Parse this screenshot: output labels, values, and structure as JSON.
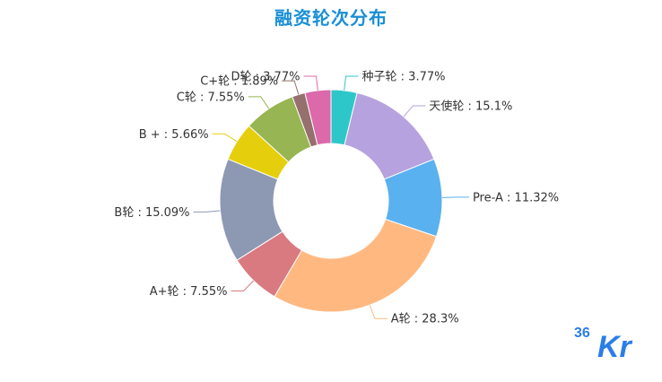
{
  "title": "融资轮次分布",
  "logo_text": "36Kr",
  "chart_data": {
    "type": "pie",
    "donut": true,
    "title": "融资轮次分布",
    "series": [
      {
        "name": "种子轮",
        "value": 3.77,
        "label": "种子轮 : 3.77%",
        "color": "#2ec7c9"
      },
      {
        "name": "天使轮",
        "value": 15.1,
        "label": "天使轮 : 15.1%",
        "color": "#b6a2de"
      },
      {
        "name": "Pre-A",
        "value": 11.32,
        "label": "Pre-A : 11.32%",
        "color": "#5ab1ef"
      },
      {
        "name": "A轮",
        "value": 28.3,
        "label": "A轮 : 28.3%",
        "color": "#ffb980"
      },
      {
        "name": "A+轮",
        "value": 7.55,
        "label": "A+轮 : 7.55%",
        "color": "#d87a80"
      },
      {
        "name": "B轮",
        "value": 15.09,
        "label": "B轮 : 15.09%",
        "color": "#8d98b3"
      },
      {
        "name": "B +",
        "value": 5.66,
        "label": "B + : 5.66%",
        "color": "#e5cf0d"
      },
      {
        "name": "C轮",
        "value": 7.55,
        "label": "C轮 : 7.55%",
        "color": "#97b552"
      },
      {
        "name": "C+轮",
        "value": 1.89,
        "label": "C+轮 : 1.89%",
        "color": "#95706d"
      },
      {
        "name": "D轮",
        "value": 3.77,
        "label": "D轮 : 3.77%",
        "color": "#dc69aa"
      }
    ]
  }
}
